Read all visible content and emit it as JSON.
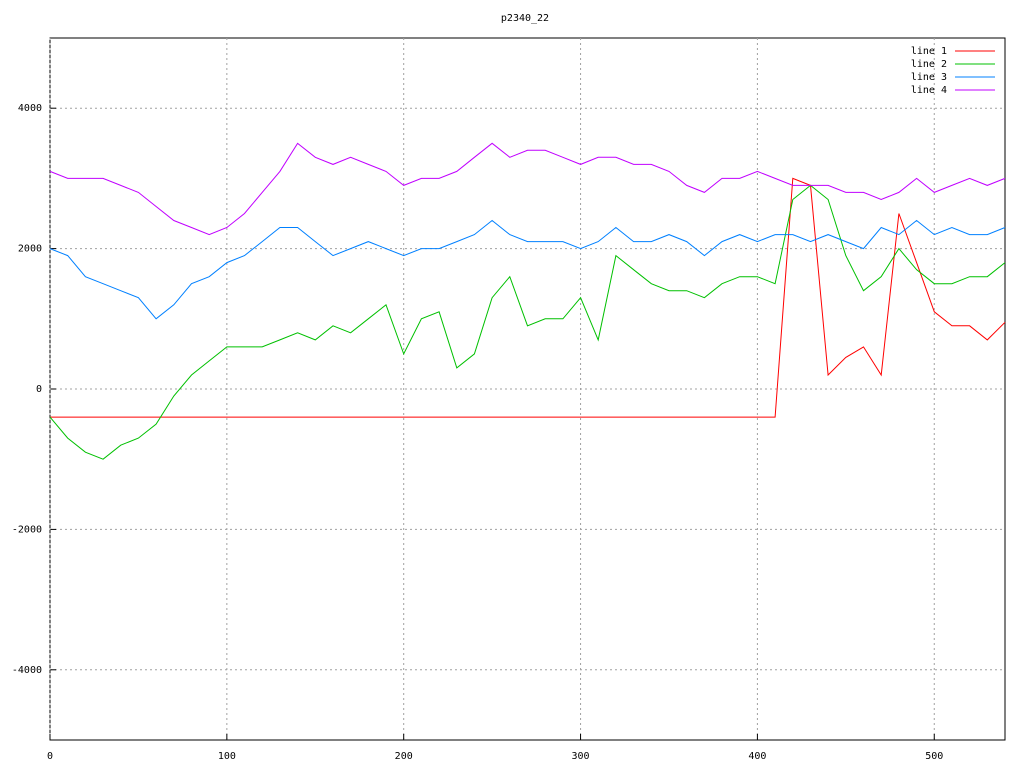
{
  "chart_data": {
    "type": "line",
    "title": "p2340_22",
    "x": [
      0,
      10,
      20,
      30,
      40,
      50,
      60,
      70,
      80,
      90,
      100,
      110,
      120,
      130,
      140,
      150,
      160,
      170,
      180,
      190,
      200,
      210,
      220,
      230,
      240,
      250,
      260,
      270,
      280,
      290,
      300,
      310,
      320,
      330,
      340,
      350,
      360,
      370,
      380,
      390,
      400,
      410,
      420,
      430,
      440,
      450,
      460,
      470,
      480,
      490,
      500,
      510,
      520,
      530,
      540
    ],
    "series": [
      {
        "name": "line 1",
        "color": "#ff0000",
        "values": [
          -400,
          -400,
          -400,
          -400,
          -400,
          -400,
          -400,
          -400,
          -400,
          -400,
          -400,
          -400,
          -400,
          -400,
          -400,
          -400,
          -400,
          -400,
          -400,
          -400,
          -400,
          -400,
          -400,
          -400,
          -400,
          -400,
          -400,
          -400,
          -400,
          -400,
          -400,
          -400,
          -400,
          -400,
          -400,
          -400,
          -400,
          -400,
          -400,
          -400,
          -400,
          -400,
          3000,
          2900,
          200,
          450,
          600,
          200,
          2500,
          1800,
          1100,
          900,
          900,
          700,
          950
        ]
      },
      {
        "name": "line 2",
        "color": "#00c000",
        "values": [
          -400,
          -700,
          -900,
          -1000,
          -800,
          -700,
          -500,
          -100,
          200,
          400,
          600,
          600,
          600,
          700,
          800,
          700,
          900,
          800,
          1000,
          1200,
          500,
          1000,
          1100,
          300,
          500,
          1300,
          1600,
          900,
          1000,
          1000,
          1300,
          700,
          1900,
          1700,
          1500,
          1400,
          1400,
          1300,
          1500,
          1600,
          1600,
          1500,
          2700,
          2900,
          2700,
          1900,
          1400,
          1600,
          2000,
          1700,
          1500,
          1500,
          1600,
          1600,
          1800
        ]
      },
      {
        "name": "line 3",
        "color": "#0080ff",
        "values": [
          2000,
          1900,
          1600,
          1500,
          1400,
          1300,
          1000,
          1200,
          1500,
          1600,
          1800,
          1900,
          2100,
          2300,
          2300,
          2100,
          1900,
          2000,
          2100,
          2000,
          1900,
          2000,
          2000,
          2100,
          2200,
          2400,
          2200,
          2100,
          2100,
          2100,
          2000,
          2100,
          2300,
          2100,
          2100,
          2200,
          2100,
          1900,
          2100,
          2200,
          2100,
          2200,
          2200,
          2100,
          2200,
          2100,
          2000,
          2300,
          2200,
          2400,
          2200,
          2300,
          2200,
          2200,
          2300
        ]
      },
      {
        "name": "line 4",
        "color": "#c000ff",
        "values": [
          3100,
          3000,
          3000,
          3000,
          2900,
          2800,
          2600,
          2400,
          2300,
          2200,
          2300,
          2500,
          2800,
          3100,
          3500,
          3300,
          3200,
          3300,
          3200,
          3100,
          2900,
          3000,
          3000,
          3100,
          3300,
          3500,
          3300,
          3400,
          3400,
          3300,
          3200,
          3300,
          3300,
          3200,
          3200,
          3100,
          2900,
          2800,
          3000,
          3000,
          3100,
          3000,
          2900,
          2900,
          2900,
          2800,
          2800,
          2700,
          2800,
          3000,
          2800,
          2900,
          3000,
          2900,
          3000
        ]
      }
    ],
    "xlim": [
      0,
      540
    ],
    "ylim": [
      -5000,
      5000
    ],
    "xticks": [
      0,
      100,
      200,
      300,
      400,
      500
    ],
    "yticks": [
      -4000,
      -2000,
      0,
      2000,
      4000
    ],
    "grid": true,
    "legend": "top-right"
  }
}
